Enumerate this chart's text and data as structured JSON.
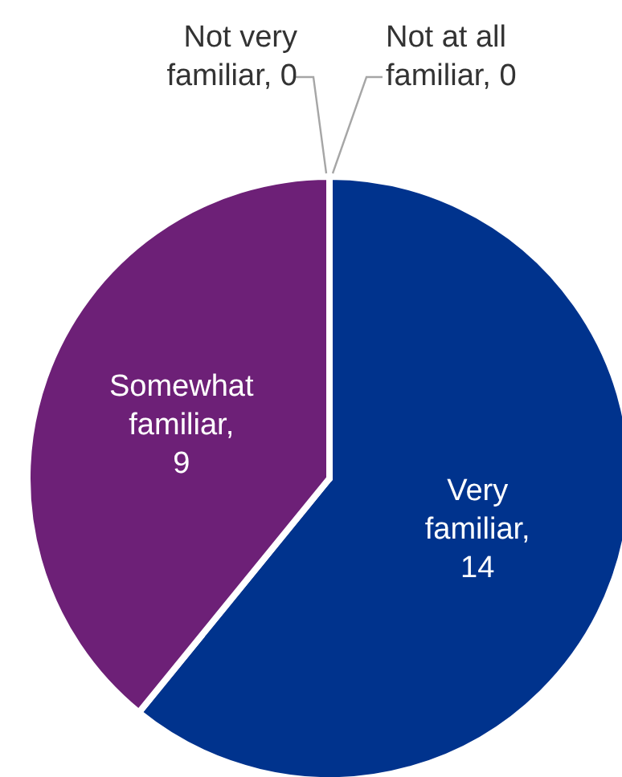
{
  "chart_data": {
    "type": "pie",
    "categories": [
      "Very familiar",
      "Somewhat familiar",
      "Not very familiar",
      "Not at all familiar"
    ],
    "values": [
      14,
      9,
      0,
      0
    ],
    "value_labels": [
      ", 14",
      ", 9",
      ", 0",
      ", 0"
    ],
    "colors": [
      "#00338d",
      "#6d2077",
      "#7f7f7f",
      "#7f7f7f"
    ]
  }
}
